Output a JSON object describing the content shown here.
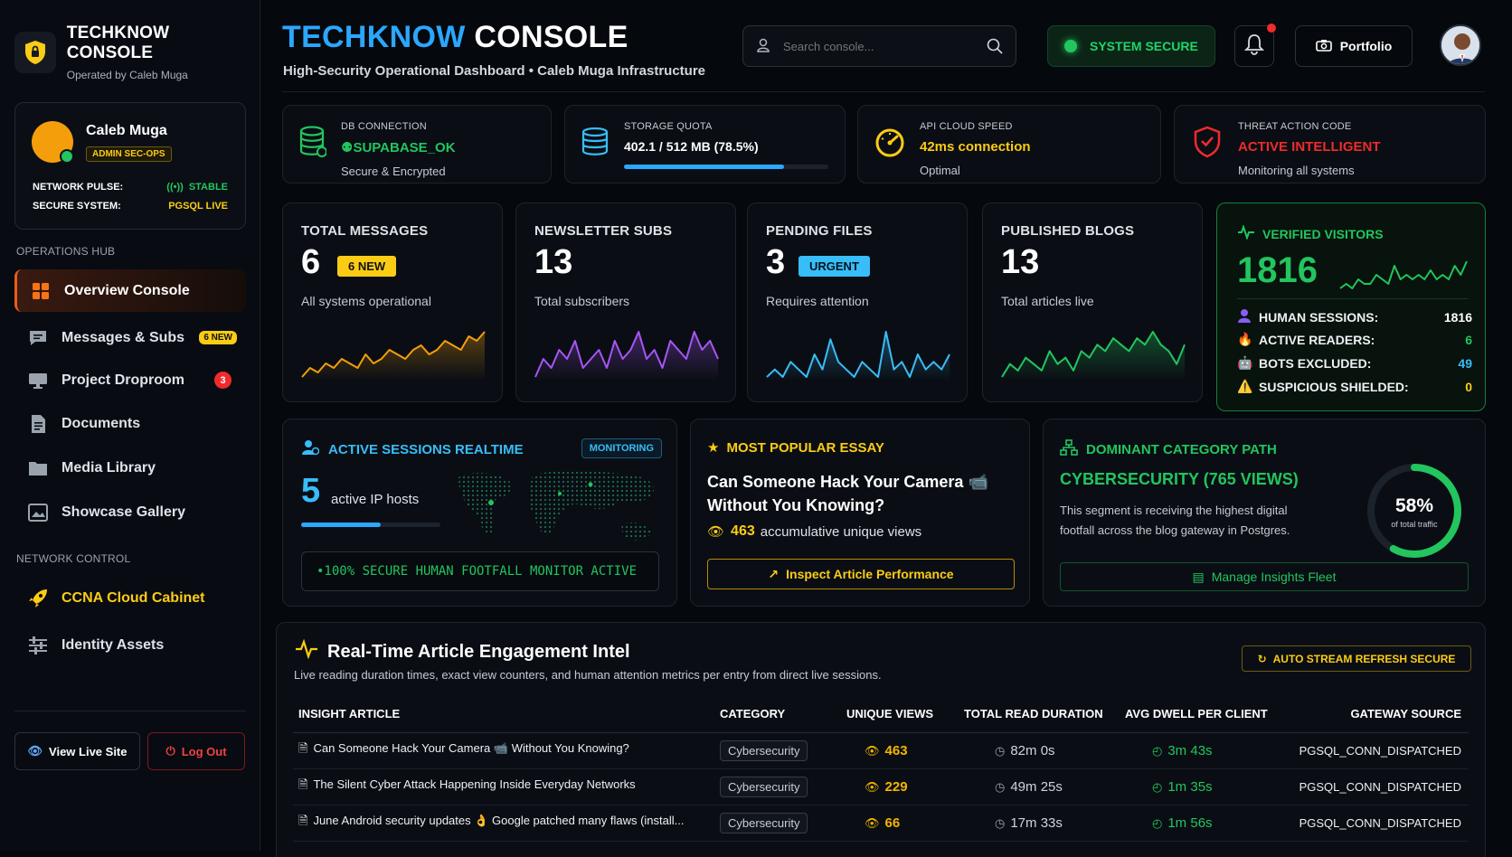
{
  "sidebar": {
    "brand_title": "TECHKNOW CONSOLE",
    "brand_sub": "Operated by Caleb Muga",
    "profile": {
      "name": "Caleb Muga",
      "role": "ADMIN SEC-OPS",
      "network_pulse_label": "NETWORK PULSE:",
      "network_pulse_value": "STABLE",
      "secure_system_label": "SECURE SYSTEM:",
      "secure_system_value": "PGSQL LIVE"
    },
    "operations_label": "OPERATIONS HUB",
    "operations": [
      {
        "label": "Overview Console",
        "icon": "grid-icon"
      },
      {
        "label": "Messages & Subs",
        "icon": "message-icon",
        "badge": "6 NEW"
      },
      {
        "label": "Project Droproom",
        "icon": "monitor-icon",
        "badge": "3"
      },
      {
        "label": "Documents",
        "icon": "document-icon"
      },
      {
        "label": "Media Library",
        "icon": "folder-icon"
      },
      {
        "label": "Showcase Gallery",
        "icon": "gallery-icon"
      }
    ],
    "network_label": "NETWORK CONTROL",
    "network": [
      {
        "label": "CCNA Cloud Cabinet",
        "icon": "rocket-icon"
      },
      {
        "label": "Identity Assets",
        "icon": "sliders-icon"
      }
    ],
    "view_live": "View Live Site",
    "logout": "Log Out"
  },
  "header": {
    "title_accent": "TECHKNOW",
    "title_rest": "CONSOLE",
    "subtitle": "High-Security Operational Dashboard • Caleb Muga Infrastructure",
    "search_placeholder": "Search console...",
    "system_status": "SYSTEM SECURE",
    "portfolio": "Portfolio"
  },
  "status_cards": [
    {
      "label": "DB CONNECTION",
      "value": "SUPABASE_OK",
      "sub": "Secure & Encrypted",
      "color": "#22c55e"
    },
    {
      "label": "STORAGE QUOTA",
      "value": "402.1 / 512 MB (78.5%)",
      "progress": 0.785,
      "color": "#38bdf8"
    },
    {
      "label": "API CLOUD SPEED",
      "value": "42ms connection",
      "sub": "Optimal",
      "color": "#facc15"
    },
    {
      "label": "THREAT ACTION CODE",
      "value": "ACTIVE INTELLIGENT",
      "sub": "Monitoring all systems",
      "color": "#ef2b2b"
    }
  ],
  "kpis": [
    {
      "title": "TOTAL MESSAGES",
      "value": "6",
      "tag": "6 NEW",
      "sub": "All systems operational",
      "color": "#f59e0b",
      "spark": [
        3,
        5,
        4,
        6,
        5,
        7,
        6,
        5,
        8,
        6,
        7,
        9,
        8,
        7,
        9,
        10,
        8,
        9,
        11,
        10,
        9,
        12,
        11,
        13
      ]
    },
    {
      "title": "NEWSLETTER SUBS",
      "value": "13",
      "sub": "Total subscribers",
      "color": "#a855f7",
      "spark": [
        6,
        8,
        7,
        9,
        8,
        10,
        7,
        8,
        9,
        7,
        10,
        8,
        9,
        11,
        8,
        9,
        7,
        10,
        9,
        8,
        11,
        9,
        10,
        8
      ]
    },
    {
      "title": "PENDING FILES",
      "value": "3",
      "tag": "URGENT",
      "sub": "Requires attention",
      "color": "#38bdf8",
      "spark": [
        5,
        6,
        5,
        7,
        6,
        5,
        8,
        6,
        10,
        7,
        6,
        5,
        7,
        6,
        5,
        11,
        6,
        7,
        5,
        8,
        6,
        7,
        6,
        8
      ]
    },
    {
      "title": "PUBLISHED BLOGS",
      "value": "13",
      "sub": "Total articles live",
      "color": "#22c55e",
      "spark": [
        5,
        7,
        6,
        8,
        7,
        6,
        9,
        7,
        8,
        6,
        9,
        8,
        10,
        9,
        11,
        10,
        9,
        11,
        10,
        12,
        10,
        9,
        7,
        10
      ]
    }
  ],
  "visitors": {
    "title": "VERIFIED VISITORS",
    "value": "1816",
    "spark": [
      4,
      5,
      4,
      6,
      5,
      5,
      7,
      6,
      5,
      9,
      6,
      7,
      6,
      7,
      6,
      8,
      6,
      7,
      6,
      9,
      7,
      10
    ],
    "rows": [
      {
        "label": "HUMAN SESSIONS:",
        "value": "1816",
        "color": "#ffffff",
        "icon": "user-icon"
      },
      {
        "label": "ACTIVE READERS:",
        "value": "6",
        "color": "#22c55e",
        "icon": "fire-icon"
      },
      {
        "label": "BOTS EXCLUDED:",
        "value": "49",
        "color": "#38bdf8",
        "icon": "robot-icon"
      },
      {
        "label": "SUSPICIOUS SHIELDED:",
        "value": "0",
        "color": "#facc15",
        "icon": "warning-icon"
      }
    ]
  },
  "sessions": {
    "title": "ACTIVE SESSIONS REALTIME",
    "badge": "MONITORING",
    "value": "5",
    "label": "active IP hosts",
    "progress": 0.57,
    "banner": "•100% SECURE HUMAN FOOTFALL MONITOR ACTIVE"
  },
  "popular": {
    "title": "MOST POPULAR ESSAY",
    "essay_line1": "Can Someone Hack Your Camera 📹",
    "essay_line2": "Without You Knowing?",
    "views": "463",
    "views_label": "accumulative unique views",
    "button": "Inspect Article Performance"
  },
  "category": {
    "title": "DOMINANT CATEGORY PATH",
    "name": "CYBERSECURITY (765 VIEWS)",
    "desc_line1": "This segment is receiving the highest digital",
    "desc_line2": "footfall across the blog gateway in Postgres.",
    "percent": "58%",
    "percent_value": 0.58,
    "percent_label": "of total traffic",
    "button": "Manage Insights Fleet"
  },
  "engagement": {
    "title": "Real-Time Article Engagement Intel",
    "subtitle": "Live reading duration times, exact view counters, and human attention metrics per entry from direct live sessions.",
    "refresh": "AUTO STREAM REFRESH SECURE",
    "columns": [
      "INSIGHT ARTICLE",
      "CATEGORY",
      "UNIQUE VIEWS",
      "TOTAL READ DURATION",
      "AVG DWELL PER CLIENT",
      "GATEWAY SOURCE"
    ],
    "rows": [
      {
        "article": "Can Someone Hack Your Camera 📹 Without You Knowing?",
        "category": "Cybersecurity",
        "views": "463",
        "duration": "82m 0s",
        "dwell": "3m 43s",
        "source": "PGSQL_CONN_DISPATCHED"
      },
      {
        "article": "The Silent Cyber Attack Happening Inside Everyday Networks",
        "category": "Cybersecurity",
        "views": "229",
        "duration": "49m 25s",
        "dwell": "1m 35s",
        "source": "PGSQL_CONN_DISPATCHED"
      },
      {
        "article": "June Android security updates 👌 Google patched many flaws (install...",
        "category": "Cybersecurity",
        "views": "66",
        "duration": "17m 33s",
        "dwell": "1m 56s",
        "source": "PGSQL_CONN_DISPATCHED"
      }
    ]
  }
}
